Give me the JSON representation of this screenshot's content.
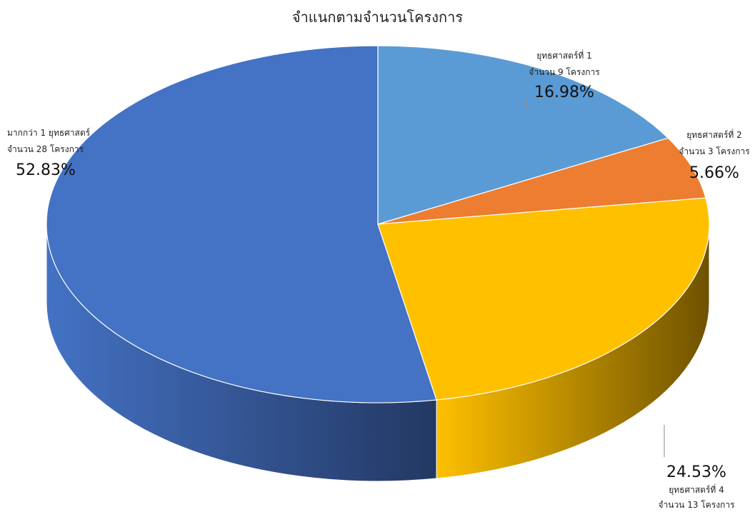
{
  "chart_data": {
    "type": "pie",
    "title": "จำแนกตามจำนวนโครงการ",
    "slices": [
      {
        "line1": "ยุทธศาสตร์ที่ 1",
        "line2": "จำนวน 9 โครงการ",
        "percent_label": "16.98%",
        "value": 9,
        "color": "#5B9BD5",
        "dark": "#35618A"
      },
      {
        "line1": "ยุทธศาสตร์ที่ 2",
        "line2": "จำนวน 3 โครงการ",
        "percent_label": "5.66%",
        "value": 3,
        "color": "#ED7D31",
        "dark": "#93481A"
      },
      {
        "line1": "ยุทธศาสตร์ที่ 4",
        "line2": "จำนวน 13 โครงการ",
        "percent_label": "24.53%",
        "value": 13,
        "color": "#FFC000",
        "dark": "#6E5200"
      },
      {
        "line1": "มากกว่า 1 ยุทธศาสตร์",
        "line2": "จำนวน 28 โครงการ",
        "percent_label": "52.83%",
        "value": 28,
        "color": "#4472C4",
        "dark": "#233863"
      }
    ]
  }
}
